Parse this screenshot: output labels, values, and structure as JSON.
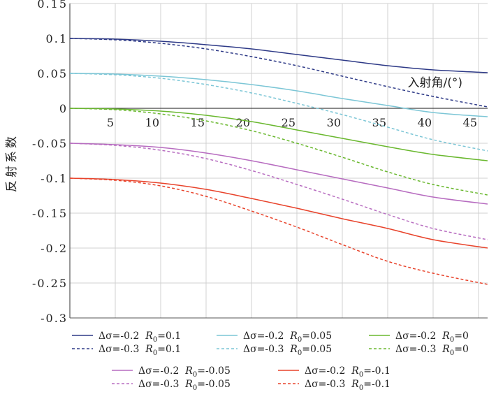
{
  "chart_data": {
    "type": "line",
    "title": "",
    "xlabel": "入射角/(°)",
    "ylabel": "反射系数",
    "xlim": [
      0,
      46
    ],
    "ylim": [
      -0.3,
      0.15
    ],
    "x_ticks": [
      5,
      10,
      15,
      20,
      25,
      30,
      35,
      40,
      45
    ],
    "x_tick_labels": [
      "5",
      "10",
      "15",
      "20",
      "25",
      "30",
      "35",
      "40",
      "45"
    ],
    "y_ticks": [
      0.15,
      0.1,
      0.05,
      0,
      -0.05,
      -0.1,
      -0.15,
      -0.2,
      -0.25,
      -0.3
    ],
    "y_tick_labels": [
      "0.15",
      "0.1",
      "0.05",
      "0",
      "-0.05",
      "-0.1",
      "-0.15",
      "-0.2",
      "-0.25",
      "-0.3"
    ],
    "grid": true,
    "legend_position": "bottom",
    "legend_parts": {
      "dsigma_prefix": "Δσ=",
      "r_symbol": "R",
      "r_subscript": "0",
      "eq": "="
    },
    "x": [
      0,
      5,
      10,
      15,
      20,
      25,
      30,
      35,
      40,
      46
    ],
    "series": [
      {
        "name": "Δσ=-0.2 R0=0.1",
        "dsigma": "-0.2",
        "r0": "0.1",
        "color": "#2e3a87",
        "dash": "solid",
        "values": [
          0.1,
          0.099,
          0.096,
          0.091,
          0.085,
          0.077,
          0.069,
          0.061,
          0.055,
          0.051
        ]
      },
      {
        "name": "Δσ=-0.3 R0=0.1",
        "dsigma": "-0.3",
        "r0": "0.1",
        "color": "#2e3a87",
        "dash": "dashed",
        "values": [
          0.1,
          0.098,
          0.093,
          0.085,
          0.074,
          0.061,
          0.046,
          0.031,
          0.017,
          0.002
        ]
      },
      {
        "name": "Δσ=-0.2 R0=0.05",
        "dsigma": "-0.2",
        "r0": "0.05",
        "color": "#7cc6d6",
        "dash": "solid",
        "values": [
          0.05,
          0.049,
          0.046,
          0.041,
          0.034,
          0.025,
          0.014,
          0.004,
          -0.006,
          -0.012
        ]
      },
      {
        "name": "Δσ=-0.3 R0=0.05",
        "dsigma": "-0.3",
        "r0": "0.05",
        "color": "#7cc6d6",
        "dash": "dashed",
        "values": [
          0.05,
          0.048,
          0.043,
          0.034,
          0.022,
          0.007,
          -0.009,
          -0.027,
          -0.045,
          -0.061
        ]
      },
      {
        "name": "Δσ=-0.2 R0=0",
        "dsigma": "-0.2",
        "r0": "0",
        "color": "#6ab82f",
        "dash": "solid",
        "values": [
          0,
          -0.001,
          -0.004,
          -0.01,
          -0.019,
          -0.031,
          -0.043,
          -0.055,
          -0.066,
          -0.075
        ]
      },
      {
        "name": "Δσ=-0.3 R0=0",
        "dsigma": "-0.3",
        "r0": "0",
        "color": "#6ab82f",
        "dash": "dashed",
        "values": [
          0,
          -0.002,
          -0.008,
          -0.018,
          -0.032,
          -0.05,
          -0.07,
          -0.091,
          -0.109,
          -0.124
        ]
      },
      {
        "name": "Δσ=-0.2 R0=-0.05",
        "dsigma": "-0.2",
        "r0": "-0.05",
        "color": "#b76cc0",
        "dash": "solid",
        "values": [
          -0.05,
          -0.052,
          -0.056,
          -0.064,
          -0.075,
          -0.088,
          -0.101,
          -0.114,
          -0.127,
          -0.137
        ]
      },
      {
        "name": "Δσ=-0.3 R0=-0.05",
        "dsigma": "-0.3",
        "r0": "-0.05",
        "color": "#b76cc0",
        "dash": "dashed",
        "values": [
          -0.05,
          -0.053,
          -0.06,
          -0.072,
          -0.089,
          -0.109,
          -0.13,
          -0.152,
          -0.172,
          -0.188
        ]
      },
      {
        "name": "Δσ=-0.2 R0=-0.1",
        "dsigma": "-0.2",
        "r0": "-0.1",
        "color": "#e8432b",
        "dash": "solid",
        "values": [
          -0.1,
          -0.102,
          -0.107,
          -0.116,
          -0.129,
          -0.143,
          -0.158,
          -0.172,
          -0.188,
          -0.2
        ]
      },
      {
        "name": "Δσ=-0.3 R0=-0.1",
        "dsigma": "-0.3",
        "r0": "-0.1",
        "color": "#e8432b",
        "dash": "dashed",
        "values": [
          -0.1,
          -0.103,
          -0.111,
          -0.126,
          -0.147,
          -0.17,
          -0.195,
          -0.219,
          -0.236,
          -0.252
        ]
      }
    ]
  }
}
